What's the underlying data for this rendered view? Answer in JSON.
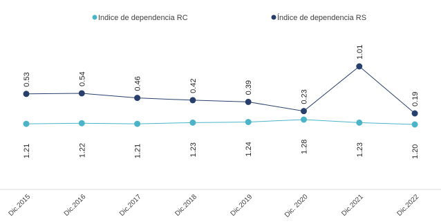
{
  "chart_data": {
    "type": "line",
    "categories": [
      "Dic.2015",
      "Dic.2016",
      "Dic.2017",
      "Dic.2018",
      "Dic.2019",
      "Dic. 2020",
      "Dic.2021",
      "Dic.2022"
    ],
    "series": [
      {
        "name": "Indice de dependencia RC",
        "color": "#4bb4c8",
        "values": [
          1.21,
          1.22,
          1.21,
          1.23,
          1.24,
          1.28,
          1.23,
          1.2
        ],
        "labels": [
          "1.21",
          "1.22",
          "1.21",
          "1.23",
          "1.24",
          "1.28",
          "1.23",
          "1.20"
        ]
      },
      {
        "name": "Índice de dependencia RS",
        "color": "#283f6b",
        "values": [
          0.53,
          0.54,
          0.46,
          0.42,
          0.39,
          0.23,
          1.01,
          0.19
        ],
        "labels": [
          "0.53",
          "0.54",
          "0.46",
          "0.42",
          "0.39",
          "0.23",
          "1.01",
          "0.19"
        ]
      }
    ],
    "legend_position": "top",
    "grid": false
  }
}
